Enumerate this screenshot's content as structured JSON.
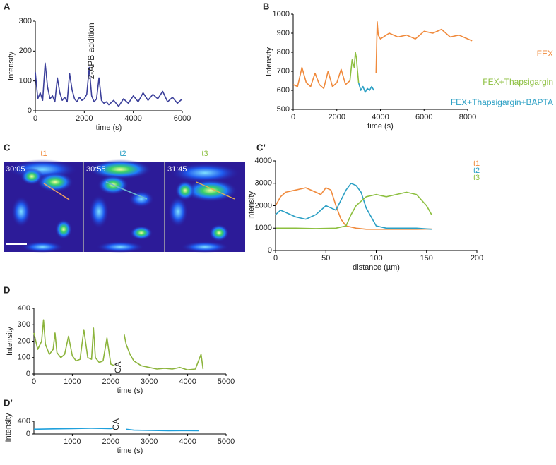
{
  "figure": {
    "panels": [
      "A",
      "B",
      "C",
      "C’",
      "D",
      "D’"
    ],
    "image_panels": [
      {
        "label": "t1",
        "time": "30:05",
        "color": "#f08a3c"
      },
      {
        "label": "t2",
        "time": "30:55",
        "color": "#2a9fc4"
      },
      {
        "label": "t3",
        "time": "31:45",
        "color": "#8cbf3f"
      }
    ]
  },
  "chart_data": [
    {
      "type": "line",
      "ylabel": "Intensity",
      "xlabel": "time (s)",
      "annotation": "2-APB  addition",
      "color": "#3b3f9a",
      "x": [
        0,
        100,
        200,
        300,
        400,
        500,
        600,
        700,
        800,
        900,
        1000,
        1100,
        1200,
        1300,
        1400,
        1500,
        1600,
        1700,
        1800,
        1900,
        2000,
        2100,
        2200,
        2300,
        2400,
        2500,
        2600,
        2700,
        2800,
        2900,
        3000,
        3200,
        3400,
        3600,
        3800,
        4000,
        4200,
        4400,
        4600,
        4800,
        5000,
        5200,
        5400,
        5600,
        5800,
        6000
      ],
      "values": [
        130,
        40,
        60,
        35,
        160,
        80,
        40,
        50,
        30,
        110,
        60,
        35,
        45,
        30,
        125,
        70,
        40,
        30,
        45,
        35,
        40,
        55,
        145,
        50,
        30,
        40,
        110,
        35,
        25,
        30,
        20,
        35,
        15,
        40,
        25,
        50,
        30,
        60,
        35,
        55,
        40,
        65,
        30,
        45,
        25,
        40
      ],
      "xlim": [
        0,
        6000
      ],
      "xticks": [
        0,
        2000,
        4000,
        6000
      ],
      "ylim": [
        0,
        300
      ],
      "yticks": [
        0,
        100,
        200,
        300
      ]
    },
    {
      "type": "line",
      "ylabel": "Intensity",
      "xlabel": "time (s)",
      "series": [
        {
          "name": "FEX",
          "color": "#f08a3c",
          "x": [
            0,
            200,
            400,
            600,
            800,
            1000,
            1200,
            1400,
            1600,
            1800,
            2000,
            2200,
            2400,
            2600,
            3200,
            3800,
            3850,
            3900,
            4000,
            4400,
            4800,
            5200,
            5600,
            6000,
            6400,
            6800,
            7200,
            7600,
            8000,
            8200
          ],
          "values": [
            630,
            620,
            720,
            640,
            620,
            690,
            630,
            610,
            700,
            620,
            640,
            710,
            630,
            650,
            null,
            690,
            960,
            890,
            870,
            900,
            880,
            890,
            870,
            910,
            900,
            920,
            880,
            890,
            870,
            860
          ]
        },
        {
          "name": "FEX+Thapsigargin",
          "color": "#8cbf3f",
          "x": [
            2600,
            2700,
            2800,
            2850,
            2900,
            2950,
            3000
          ],
          "values": [
            650,
            760,
            720,
            800,
            770,
            700,
            640
          ]
        },
        {
          "name": "FEX+Thapsigargin+BAPTA",
          "color": "#2a9fc4",
          "x": [
            3000,
            3100,
            3200,
            3300,
            3400,
            3500,
            3600,
            3700
          ],
          "values": [
            640,
            600,
            620,
            590,
            610,
            600,
            620,
            600
          ]
        }
      ],
      "xlim": [
        0,
        8000
      ],
      "xticks": [
        0,
        2000,
        4000,
        6000,
        8000
      ],
      "ylim": [
        500,
        1000
      ],
      "yticks": [
        500,
        600,
        700,
        800,
        900,
        1000
      ]
    },
    {
      "type": "line",
      "ylabel": "Intensity",
      "xlabel": "distance (µm)",
      "series": [
        {
          "name": "t1",
          "color": "#f08a3c",
          "x": [
            0,
            5,
            10,
            20,
            30,
            40,
            45,
            50,
            55,
            60,
            65,
            70,
            80,
            90,
            100,
            120,
            140,
            155
          ],
          "values": [
            2000,
            2400,
            2600,
            2700,
            2800,
            2600,
            2500,
            2800,
            2700,
            2000,
            1400,
            1100,
            1000,
            950,
            950,
            950,
            950,
            960
          ]
        },
        {
          "name": "t2",
          "color": "#2a9fc4",
          "x": [
            0,
            5,
            10,
            20,
            30,
            40,
            50,
            55,
            60,
            70,
            75,
            80,
            85,
            90,
            100,
            110,
            120,
            140,
            155
          ],
          "values": [
            1600,
            1800,
            1700,
            1500,
            1400,
            1600,
            2000,
            1900,
            1800,
            2700,
            3000,
            2900,
            2600,
            1900,
            1100,
            1000,
            1000,
            1000,
            950
          ]
        },
        {
          "name": "t3",
          "color": "#8cbf3f",
          "x": [
            0,
            20,
            40,
            60,
            70,
            75,
            80,
            90,
            100,
            110,
            120,
            130,
            140,
            150,
            155
          ],
          "values": [
            1000,
            1000,
            980,
            1000,
            1100,
            1600,
            2000,
            2400,
            2500,
            2400,
            2500,
            2600,
            2500,
            2000,
            1600
          ]
        }
      ],
      "xlim": [
        0,
        200
      ],
      "xticks": [
        0,
        50,
        100,
        150,
        200
      ],
      "ylim": [
        0,
        4000
      ],
      "yticks": [
        0,
        1000,
        2000,
        3000,
        4000
      ]
    },
    {
      "type": "line",
      "ylabel": "Intensity",
      "xlabel": "time (s)",
      "annotation": "CA",
      "color": "#8cb43c",
      "x": [
        0,
        100,
        200,
        250,
        300,
        400,
        500,
        550,
        600,
        700,
        800,
        900,
        1000,
        1100,
        1200,
        1300,
        1400,
        1500,
        1550,
        1600,
        1700,
        1800,
        1900,
        2000,
        2100,
        2200,
        2300,
        2350,
        2400,
        2500,
        2600,
        2800,
        3000,
        3200,
        3400,
        3600,
        3800,
        4000,
        4200,
        4350,
        4400
      ],
      "values": [
        250,
        150,
        200,
        330,
        180,
        120,
        150,
        250,
        130,
        100,
        120,
        230,
        110,
        80,
        90,
        270,
        100,
        90,
        280,
        100,
        70,
        80,
        220,
        60,
        50,
        null,
        null,
        240,
        180,
        120,
        80,
        50,
        40,
        30,
        35,
        30,
        40,
        25,
        30,
        120,
        30
      ],
      "xlim": [
        0,
        5000
      ],
      "xticks": [
        0,
        1000,
        2000,
        3000,
        4000,
        5000
      ],
      "ylim": [
        0,
        400
      ],
      "yticks": [
        0,
        100,
        200,
        300,
        400
      ]
    },
    {
      "type": "line",
      "ylabel": "Intensity",
      "xlabel": "time (s)",
      "annotation": "CA",
      "color": "#1fa0dc",
      "x": [
        0,
        500,
        1000,
        1500,
        2000,
        2100,
        2200,
        2300,
        2400,
        2600,
        3000,
        3500,
        4000,
        4300
      ],
      "values": [
        150,
        160,
        170,
        180,
        170,
        190,
        null,
        null,
        150,
        120,
        110,
        100,
        105,
        100
      ],
      "xlim": [
        0,
        5000
      ],
      "xticks": [
        1000,
        2000,
        3000,
        4000,
        5000
      ],
      "ylim": [
        0,
        400
      ],
      "yticks": [
        0,
        400
      ]
    }
  ]
}
